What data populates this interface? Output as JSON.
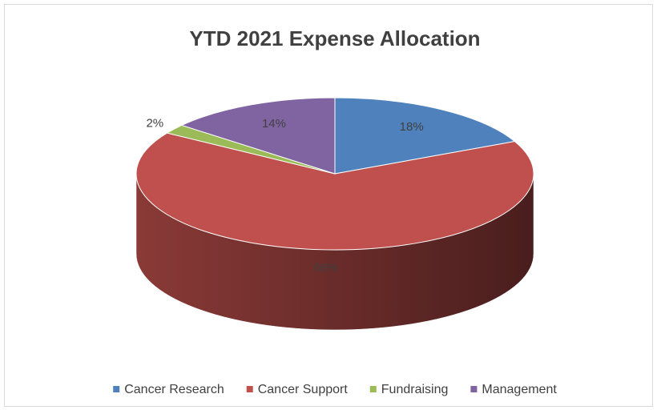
{
  "chart_data": {
    "type": "pie3d",
    "title": "YTD 2021 Expense Allocation",
    "categories": [
      "Cancer Research",
      "Cancer Support",
      "Fundraising",
      "Management"
    ],
    "values": [
      18,
      66,
      2,
      14
    ],
    "value_labels": [
      "18%",
      "66%",
      "2%",
      "14%"
    ],
    "colors": [
      "#4f81bd",
      "#c0504d",
      "#9bbb59",
      "#8064a2"
    ],
    "legend": "bottom"
  }
}
